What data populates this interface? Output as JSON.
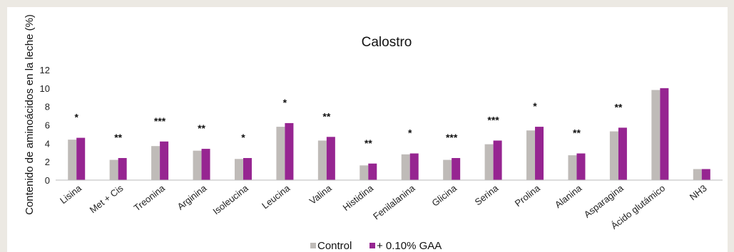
{
  "chart_data": {
    "type": "bar",
    "title": "Calostro",
    "xlabel": "",
    "ylabel": "Contenido de aminoácidos en la leche (%)",
    "ylim": [
      0,
      12
    ],
    "yticks": [
      "0",
      "2",
      "4",
      "6",
      "8",
      "10",
      "12"
    ],
    "grid": false,
    "legend_position": "bottom",
    "categories": [
      "Lisina",
      "Met + Cis",
      "Treonina",
      "Arginina",
      "Isoleucina",
      "Leucina",
      "Valina",
      "Histidina",
      "Fenilalanina",
      "Glicina",
      "Serina",
      "Prolina",
      "Alanina",
      "Asparagina",
      "Ácido glutámico",
      "NH3"
    ],
    "series": [
      {
        "name": "Control",
        "color": "#bfbbb8",
        "values": [
          4.4,
          2.2,
          3.7,
          3.2,
          2.3,
          5.8,
          4.3,
          1.6,
          2.8,
          2.2,
          3.9,
          5.4,
          2.7,
          5.3,
          9.8,
          1.2
        ]
      },
      {
        "name": "+ 0.10% GAA",
        "color": "#962591",
        "values": [
          4.6,
          2.4,
          4.2,
          3.4,
          2.4,
          6.2,
          4.7,
          1.8,
          2.9,
          2.4,
          4.3,
          5.8,
          2.9,
          5.7,
          10.0,
          1.2
        ]
      }
    ],
    "significance": [
      "*",
      "**",
      "***",
      "**",
      "*",
      "*",
      "**",
      "**",
      "*",
      "***",
      "***",
      "*",
      "**",
      "**",
      "",
      ""
    ]
  }
}
